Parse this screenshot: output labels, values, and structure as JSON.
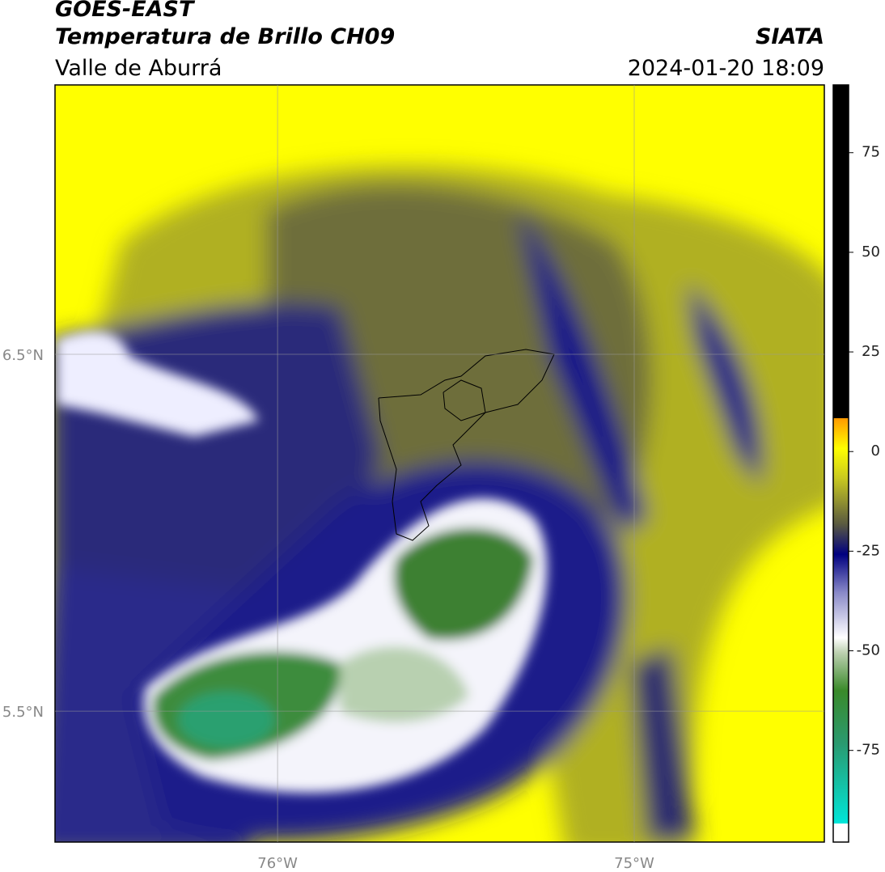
{
  "header": {
    "title": "GOES-EAST",
    "subtitle": "Temperatura de Brillo CH09",
    "region": "Valle de Aburrá",
    "source": "SIATA",
    "datetime": "2024-01-20 18:09"
  },
  "map": {
    "lonlim": [
      -76.624,
      -74.467
    ],
    "latlim": [
      5.133,
      7.255
    ],
    "xticks": [
      {
        "value": -76,
        "label": "76°W"
      },
      {
        "value": -75,
        "label": "75°W"
      }
    ],
    "yticks": [
      {
        "value": 6.5,
        "label": "6.5°N"
      },
      {
        "value": 5.5,
        "label": "5.5°N"
      }
    ]
  },
  "colorbar": {
    "lim": [
      -98,
      92
    ],
    "ticks": [
      75,
      50,
      25,
      0,
      -25,
      -50,
      -75
    ]
  }
}
